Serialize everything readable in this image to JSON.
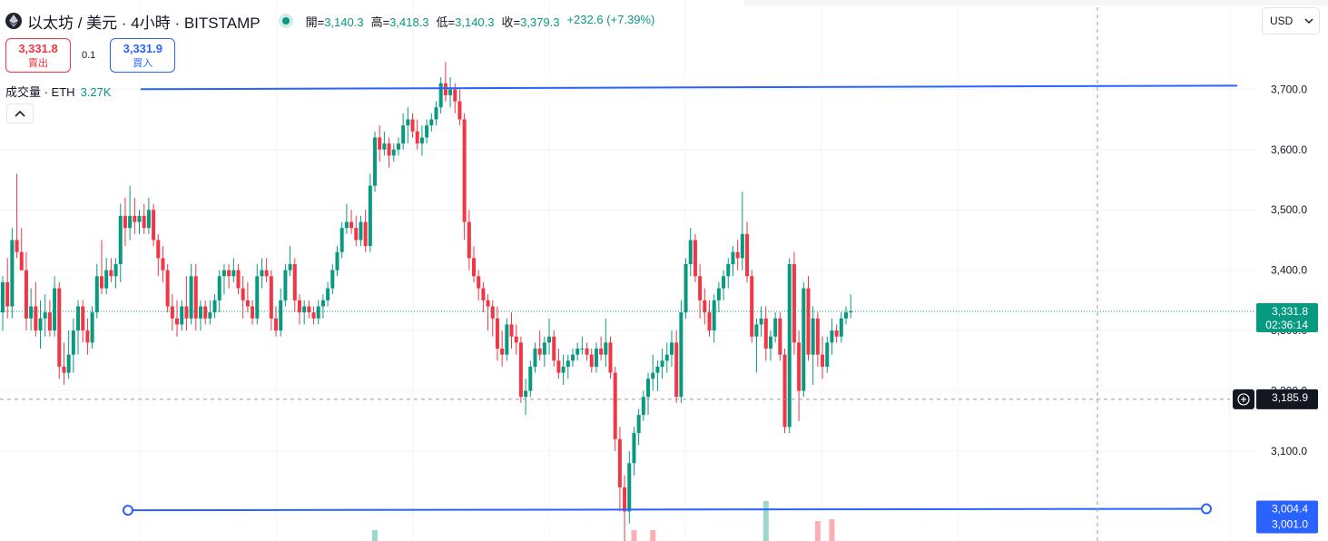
{
  "header": {
    "title": "以太坊 / 美元 · 4小時 · BITSTAMP",
    "ohlc": [
      {
        "k": "開=",
        "v": "3,140.3"
      },
      {
        "k": "高=",
        "v": "3,418.3"
      },
      {
        "k": "低=",
        "v": "3,140.3"
      },
      {
        "k": "收=",
        "v": "3,379.3"
      }
    ],
    "change": "+232.6 (+7.39%)"
  },
  "trade": {
    "sell_price": "3,331.8",
    "sell_label": "賣出",
    "spread": "0.1",
    "buy_price": "3,331.9",
    "buy_label": "買入"
  },
  "volume": {
    "label": "成交量 · ETH",
    "value": "3.27K"
  },
  "currency": {
    "label": "USD"
  },
  "icons": {
    "logo": "ethereum-logo-icon",
    "collapse": "chevron-up-icon",
    "dropdown": "chevron-down-icon",
    "add": "plus-circle-icon"
  },
  "colors": {
    "up": "#089981",
    "down": "#f23645",
    "line": "#2962ff",
    "current": "#089981"
  },
  "chart_data": {
    "type": "candlestick",
    "y_ticks": [
      "3,100.0",
      "3,200.0",
      "3,300.0",
      "3,400.0",
      "3,500.0",
      "3,600.0",
      "3,700.0"
    ],
    "price_labels": {
      "current": "3,331.8",
      "countdown": "02:36:14",
      "crosshair": "3,185.9",
      "line_level": "3,004.4",
      "low_level": "3,001.0"
    },
    "trend_lines": [
      {
        "start": 3700,
        "end": 3706
      },
      {
        "start": 3002,
        "end": 3004.4
      }
    ],
    "candles": [
      [
        3330,
        3390,
        3300,
        3380
      ],
      [
        3380,
        3420,
        3320,
        3340
      ],
      [
        3340,
        3470,
        3320,
        3450
      ],
      [
        3450,
        3560,
        3420,
        3430
      ],
      [
        3430,
        3470,
        3400,
        3400
      ],
      [
        3400,
        3430,
        3300,
        3320
      ],
      [
        3320,
        3370,
        3300,
        3340
      ],
      [
        3340,
        3380,
        3290,
        3300
      ],
      [
        3300,
        3350,
        3270,
        3320
      ],
      [
        3320,
        3360,
        3290,
        3330
      ],
      [
        3330,
        3350,
        3290,
        3300
      ],
      [
        3300,
        3390,
        3290,
        3370
      ],
      [
        3370,
        3380,
        3220,
        3240
      ],
      [
        3240,
        3280,
        3210,
        3230
      ],
      [
        3230,
        3300,
        3220,
        3260
      ],
      [
        3260,
        3320,
        3230,
        3300
      ],
      [
        3300,
        3350,
        3260,
        3340
      ],
      [
        3340,
        3350,
        3280,
        3300
      ],
      [
        3300,
        3320,
        3260,
        3280
      ],
      [
        3280,
        3340,
        3270,
        3330
      ],
      [
        3330,
        3410,
        3320,
        3390
      ],
      [
        3390,
        3450,
        3360,
        3370
      ],
      [
        3370,
        3420,
        3360,
        3400
      ],
      [
        3400,
        3420,
        3380,
        3390
      ],
      [
        3390,
        3420,
        3370,
        3410
      ],
      [
        3410,
        3510,
        3380,
        3490
      ],
      [
        3490,
        3520,
        3440,
        3470
      ],
      [
        3470,
        3540,
        3450,
        3490
      ],
      [
        3490,
        3520,
        3460,
        3480
      ],
      [
        3480,
        3500,
        3460,
        3490
      ],
      [
        3490,
        3510,
        3460,
        3470
      ],
      [
        3470,
        3520,
        3460,
        3500
      ],
      [
        3500,
        3510,
        3440,
        3450
      ],
      [
        3450,
        3460,
        3390,
        3420
      ],
      [
        3420,
        3440,
        3380,
        3400
      ],
      [
        3400,
        3410,
        3330,
        3340
      ],
      [
        3340,
        3360,
        3300,
        3320
      ],
      [
        3320,
        3350,
        3290,
        3310
      ],
      [
        3310,
        3350,
        3300,
        3340
      ],
      [
        3340,
        3390,
        3300,
        3320
      ],
      [
        3320,
        3410,
        3310,
        3390
      ],
      [
        3390,
        3410,
        3300,
        3320
      ],
      [
        3320,
        3350,
        3300,
        3340
      ],
      [
        3340,
        3350,
        3310,
        3320
      ],
      [
        3320,
        3350,
        3310,
        3330
      ],
      [
        3330,
        3360,
        3320,
        3350
      ],
      [
        3350,
        3400,
        3330,
        3390
      ],
      [
        3390,
        3410,
        3360,
        3400
      ],
      [
        3400,
        3410,
        3370,
        3390
      ],
      [
        3390,
        3420,
        3380,
        3400
      ],
      [
        3400,
        3410,
        3360,
        3370
      ],
      [
        3370,
        3390,
        3320,
        3350
      ],
      [
        3350,
        3380,
        3330,
        3340
      ],
      [
        3340,
        3350,
        3310,
        3320
      ],
      [
        3320,
        3410,
        3310,
        3390
      ],
      [
        3390,
        3420,
        3370,
        3400
      ],
      [
        3400,
        3420,
        3380,
        3390
      ],
      [
        3390,
        3400,
        3300,
        3320
      ],
      [
        3320,
        3340,
        3290,
        3300
      ],
      [
        3300,
        3370,
        3290,
        3350
      ],
      [
        3350,
        3410,
        3340,
        3400
      ],
      [
        3400,
        3440,
        3390,
        3410
      ],
      [
        3410,
        3420,
        3330,
        3350
      ],
      [
        3350,
        3360,
        3310,
        3330
      ],
      [
        3330,
        3350,
        3310,
        3340
      ],
      [
        3340,
        3350,
        3320,
        3330
      ],
      [
        3330,
        3340,
        3310,
        3320
      ],
      [
        3320,
        3350,
        3310,
        3340
      ],
      [
        3340,
        3360,
        3320,
        3350
      ],
      [
        3350,
        3380,
        3340,
        3370
      ],
      [
        3370,
        3410,
        3360,
        3400
      ],
      [
        3400,
        3440,
        3390,
        3430
      ],
      [
        3430,
        3480,
        3420,
        3470
      ],
      [
        3470,
        3510,
        3460,
        3480
      ],
      [
        3480,
        3500,
        3460,
        3470
      ],
      [
        3470,
        3490,
        3440,
        3450
      ],
      [
        3450,
        3490,
        3440,
        3480
      ],
      [
        3480,
        3500,
        3430,
        3440
      ],
      [
        3440,
        3560,
        3430,
        3540
      ],
      [
        3540,
        3630,
        3530,
        3620
      ],
      [
        3620,
        3640,
        3580,
        3600
      ],
      [
        3600,
        3630,
        3590,
        3610
      ],
      [
        3610,
        3620,
        3570,
        3590
      ],
      [
        3590,
        3610,
        3580,
        3600
      ],
      [
        3600,
        3620,
        3590,
        3610
      ],
      [
        3610,
        3660,
        3600,
        3640
      ],
      [
        3640,
        3670,
        3610,
        3650
      ],
      [
        3650,
        3660,
        3620,
        3630
      ],
      [
        3630,
        3650,
        3600,
        3610
      ],
      [
        3610,
        3640,
        3590,
        3620
      ],
      [
        3620,
        3650,
        3610,
        3640
      ],
      [
        3640,
        3660,
        3630,
        3650
      ],
      [
        3650,
        3680,
        3640,
        3670
      ],
      [
        3670,
        3720,
        3660,
        3710
      ],
      [
        3710,
        3745,
        3680,
        3690
      ],
      [
        3690,
        3720,
        3670,
        3700
      ],
      [
        3700,
        3710,
        3660,
        3680
      ],
      [
        3680,
        3700,
        3640,
        3650
      ],
      [
        3650,
        3660,
        3450,
        3480
      ],
      [
        3480,
        3500,
        3400,
        3420
      ],
      [
        3420,
        3440,
        3380,
        3390
      ],
      [
        3390,
        3400,
        3350,
        3370
      ],
      [
        3370,
        3380,
        3330,
        3350
      ],
      [
        3350,
        3360,
        3300,
        3340
      ],
      [
        3340,
        3350,
        3290,
        3320
      ],
      [
        3320,
        3340,
        3250,
        3270
      ],
      [
        3270,
        3300,
        3240,
        3260
      ],
      [
        3260,
        3320,
        3250,
        3310
      ],
      [
        3310,
        3330,
        3270,
        3290
      ],
      [
        3290,
        3310,
        3260,
        3280
      ],
      [
        3280,
        3290,
        3180,
        3190
      ],
      [
        3190,
        3220,
        3160,
        3200
      ],
      [
        3200,
        3250,
        3190,
        3240
      ],
      [
        3240,
        3280,
        3230,
        3270
      ],
      [
        3270,
        3300,
        3250,
        3260
      ],
      [
        3260,
        3290,
        3240,
        3280
      ],
      [
        3280,
        3320,
        3260,
        3290
      ],
      [
        3290,
        3300,
        3240,
        3250
      ],
      [
        3250,
        3270,
        3220,
        3230
      ],
      [
        3230,
        3260,
        3210,
        3240
      ],
      [
        3240,
        3260,
        3220,
        3250
      ],
      [
        3250,
        3270,
        3240,
        3260
      ],
      [
        3260,
        3280,
        3250,
        3270
      ],
      [
        3270,
        3290,
        3260,
        3270
      ],
      [
        3270,
        3280,
        3250,
        3260
      ],
      [
        3260,
        3270,
        3230,
        3240
      ],
      [
        3240,
        3280,
        3230,
        3270
      ],
      [
        3270,
        3290,
        3250,
        3260
      ],
      [
        3260,
        3320,
        3240,
        3280
      ],
      [
        3280,
        3290,
        3220,
        3230
      ],
      [
        3230,
        3240,
        3100,
        3120
      ],
      [
        3120,
        3140,
        3000,
        3040
      ],
      [
        3040,
        3060,
        2950,
        3000
      ],
      [
        3000,
        3100,
        2980,
        3080
      ],
      [
        3080,
        3140,
        3060,
        3130
      ],
      [
        3130,
        3170,
        3110,
        3160
      ],
      [
        3160,
        3200,
        3150,
        3190
      ],
      [
        3190,
        3230,
        3160,
        3220
      ],
      [
        3220,
        3260,
        3200,
        3230
      ],
      [
        3230,
        3250,
        3200,
        3240
      ],
      [
        3240,
        3270,
        3220,
        3250
      ],
      [
        3250,
        3280,
        3230,
        3260
      ],
      [
        3260,
        3300,
        3240,
        3280
      ],
      [
        3280,
        3300,
        3180,
        3190
      ],
      [
        3190,
        3350,
        3180,
        3330
      ],
      [
        3330,
        3420,
        3320,
        3410
      ],
      [
        3410,
        3470,
        3390,
        3450
      ],
      [
        3450,
        3460,
        3380,
        3390
      ],
      [
        3390,
        3410,
        3320,
        3350
      ],
      [
        3350,
        3370,
        3310,
        3330
      ],
      [
        3330,
        3350,
        3290,
        3300
      ],
      [
        3300,
        3360,
        3280,
        3350
      ],
      [
        3350,
        3380,
        3330,
        3370
      ],
      [
        3370,
        3400,
        3350,
        3390
      ],
      [
        3390,
        3420,
        3370,
        3410
      ],
      [
        3410,
        3440,
        3390,
        3430
      ],
      [
        3430,
        3450,
        3400,
        3420
      ],
      [
        3420,
        3530,
        3400,
        3460
      ],
      [
        3460,
        3480,
        3380,
        3390
      ],
      [
        3390,
        3400,
        3280,
        3290
      ],
      [
        3290,
        3320,
        3230,
        3310
      ],
      [
        3310,
        3340,
        3290,
        3320
      ],
      [
        3320,
        3340,
        3250,
        3270
      ],
      [
        3270,
        3300,
        3250,
        3290
      ],
      [
        3290,
        3330,
        3280,
        3320
      ],
      [
        3320,
        3330,
        3250,
        3260
      ],
      [
        3260,
        3270,
        3130,
        3140
      ],
      [
        3140,
        3420,
        3130,
        3410
      ],
      [
        3410,
        3430,
        3260,
        3280
      ],
      [
        3280,
        3300,
        3150,
        3200
      ],
      [
        3200,
        3380,
        3190,
        3370
      ],
      [
        3370,
        3390,
        3250,
        3260
      ],
      [
        3260,
        3340,
        3210,
        3320
      ],
      [
        3320,
        3330,
        3240,
        3260
      ],
      [
        3260,
        3290,
        3220,
        3240
      ],
      [
        3240,
        3290,
        3230,
        3280
      ],
      [
        3280,
        3320,
        3260,
        3300
      ],
      [
        3300,
        3310,
        3280,
        3290
      ],
      [
        3290,
        3330,
        3280,
        3320
      ],
      [
        3320,
        3340,
        3310,
        3330
      ],
      [
        3330,
        3360,
        3320,
        3331.8
      ]
    ],
    "volume_marks": [
      {
        "candle": 79,
        "dir": "up",
        "v": 0.2
      },
      {
        "candle": 134,
        "dir": "down",
        "v": 0.2
      },
      {
        "candle": 138,
        "dir": "down",
        "v": 0.2
      },
      {
        "candle": 162,
        "dir": "up",
        "v": 1
      },
      {
        "candle": 173,
        "dir": "down",
        "v": 0.45
      },
      {
        "candle": 176,
        "dir": "down",
        "v": 0.5
      }
    ]
  }
}
